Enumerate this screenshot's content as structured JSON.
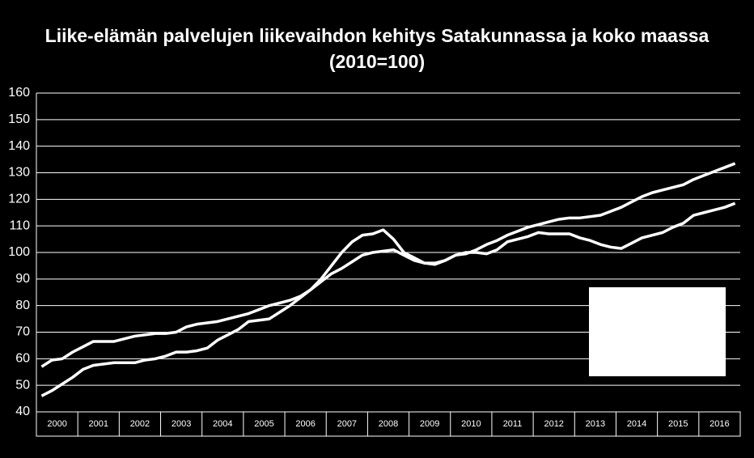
{
  "chart_data": {
    "type": "line",
    "title": "Liike-elämän palvelujen liikevaihdon kehitys Satakunnassa ja koko maassa",
    "subtitle": "(2010=100)",
    "categories": [
      "2000",
      "2001",
      "2002",
      "2003",
      "2004",
      "2005",
      "2006",
      "2007",
      "2008",
      "2009",
      "2010",
      "2011",
      "2012",
      "2013",
      "2014",
      "2015",
      "2016"
    ],
    "xlim": [
      2000,
      2017
    ],
    "x": [
      2000.125,
      2000.375,
      2000.625,
      2000.875,
      2001.125,
      2001.375,
      2001.625,
      2001.875,
      2002.125,
      2002.375,
      2002.625,
      2002.875,
      2003.125,
      2003.375,
      2003.625,
      2003.875,
      2004.125,
      2004.375,
      2004.625,
      2004.875,
      2005.125,
      2005.375,
      2005.625,
      2005.875,
      2006.125,
      2006.375,
      2006.625,
      2006.875,
      2007.125,
      2007.375,
      2007.625,
      2007.875,
      2008.125,
      2008.375,
      2008.625,
      2008.875,
      2009.125,
      2009.375,
      2009.625,
      2009.875,
      2010.125,
      2010.375,
      2010.625,
      2010.875,
      2011.125,
      2011.375,
      2011.625,
      2011.875,
      2012.125,
      2012.375,
      2012.625,
      2012.875,
      2013.125,
      2013.375,
      2013.625,
      2013.875,
      2014.125,
      2014.375,
      2014.625,
      2014.875,
      2015.125,
      2015.375,
      2015.625,
      2015.875,
      2016.125,
      2016.375,
      2016.625,
      2016.875
    ],
    "series": [
      {
        "color": "#ffffff",
        "values": [
          57,
          59.5,
          60,
          62.5,
          64.5,
          66.5,
          66.5,
          66.5,
          67.5,
          68.5,
          69,
          69.5,
          69.5,
          70,
          72,
          73,
          73.5,
          74,
          75,
          76,
          77,
          78.5,
          80,
          81,
          82,
          83.5,
          86,
          89,
          92,
          94,
          96.5,
          99,
          100,
          100.5,
          101,
          99,
          97,
          96,
          96,
          97,
          99,
          99.5,
          101,
          103,
          104.5,
          106.5,
          108,
          109.5,
          110.5,
          111.5,
          112.5,
          113,
          113,
          113.5,
          114,
          115.5,
          117,
          119,
          121,
          122.5,
          123.5,
          124.5,
          125.5,
          127.5,
          129,
          130.5,
          132,
          133.5
        ]
      },
      {
        "color": "#ffffff",
        "values": [
          46,
          48,
          50.5,
          53,
          56,
          57.5,
          58,
          58.5,
          58.5,
          58.5,
          59.5,
          60,
          61,
          62.5,
          62.5,
          63,
          64,
          67,
          69,
          71,
          74,
          74.5,
          75,
          77.5,
          80,
          83,
          86,
          90,
          95,
          100,
          104,
          106.5,
          107,
          108.5,
          105,
          100,
          98,
          96,
          95.5,
          97,
          99,
          100,
          100,
          99.5,
          101,
          104,
          105,
          106,
          107.5,
          107,
          107,
          107,
          105.5,
          104.5,
          103,
          102,
          101.5,
          103.5,
          105.5,
          106.5,
          107.5,
          109.5,
          111,
          114,
          115,
          116,
          117,
          118.5
        ]
      }
    ],
    "ylim": [
      40,
      160
    ],
    "yticks": [
      40,
      50,
      60,
      70,
      80,
      90,
      100,
      110,
      120,
      130,
      140,
      150,
      160
    ],
    "grid": true
  }
}
